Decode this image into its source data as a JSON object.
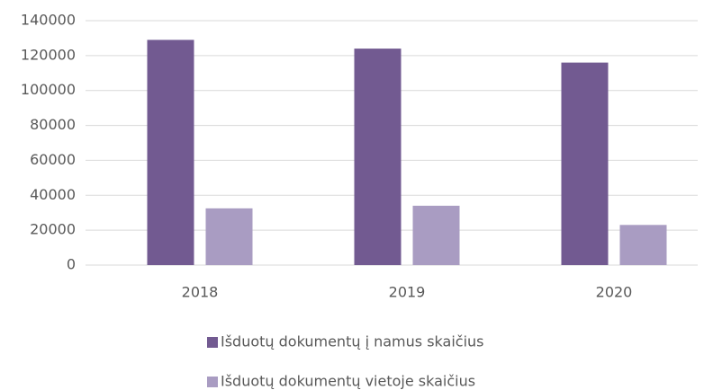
{
  "chart_data": {
    "type": "bar",
    "categories": [
      "2018",
      "2019",
      "2020"
    ],
    "series": [
      {
        "name": "Išduotų dokumentų į namus skaičius",
        "color": "#725a91",
        "values": [
          129000,
          124000,
          116000
        ]
      },
      {
        "name": "Išduotų dokumentų vietoje skaičius",
        "color": "#a99cc2",
        "values": [
          32500,
          34000,
          23000
        ]
      }
    ],
    "ylim": [
      0,
      140000
    ],
    "yticks": [
      0,
      20000,
      40000,
      60000,
      80000,
      100000,
      120000,
      140000
    ],
    "grid": true,
    "legend": "bottom"
  }
}
